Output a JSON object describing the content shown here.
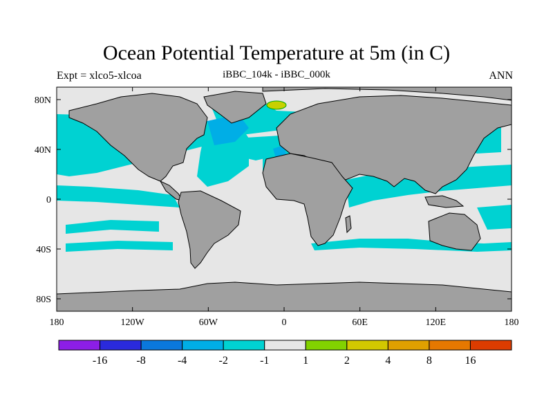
{
  "title": "Ocean Potential Temperature at 5m (in C)",
  "left_label": "Expt = xlco5-xlcoa",
  "center_label": "iBBC_104k - iBBC_000k",
  "right_label": "ANN",
  "colors": {
    "land": "#a0a0a0",
    "near_zero": "#e6e6e6",
    "cyan": "#00d2d2",
    "light_blue": "#00aee6",
    "blue": "#0078dc",
    "dark_blue": "#1e1ee6",
    "green_yellow": "#a0d000"
  },
  "lat_ticks": [
    {
      "value": 80,
      "label": "80N"
    },
    {
      "value": 40,
      "label": "40N"
    },
    {
      "value": 0,
      "label": "0"
    },
    {
      "value": -40,
      "label": "40S"
    },
    {
      "value": -80,
      "label": "80S"
    }
  ],
  "lon_ticks": [
    {
      "value": -180,
      "label": "180"
    },
    {
      "value": -120,
      "label": "120W"
    },
    {
      "value": -60,
      "label": "60W"
    },
    {
      "value": 0,
      "label": "0"
    },
    {
      "value": 60,
      "label": "60E"
    },
    {
      "value": 120,
      "label": "120E"
    },
    {
      "value": 180,
      "label": "180"
    }
  ],
  "colorbar": {
    "colors": [
      "#8c1ee6",
      "#2a2adc",
      "#0a78dc",
      "#00aee6",
      "#00d2d2",
      "#e6e6e6",
      "#82d200",
      "#d2c800",
      "#e0a000",
      "#e67800",
      "#dc3c00"
    ],
    "labels": [
      "-16",
      "-8",
      "-4",
      "-2",
      "-1",
      "1",
      "2",
      "4",
      "8",
      "16"
    ]
  }
}
